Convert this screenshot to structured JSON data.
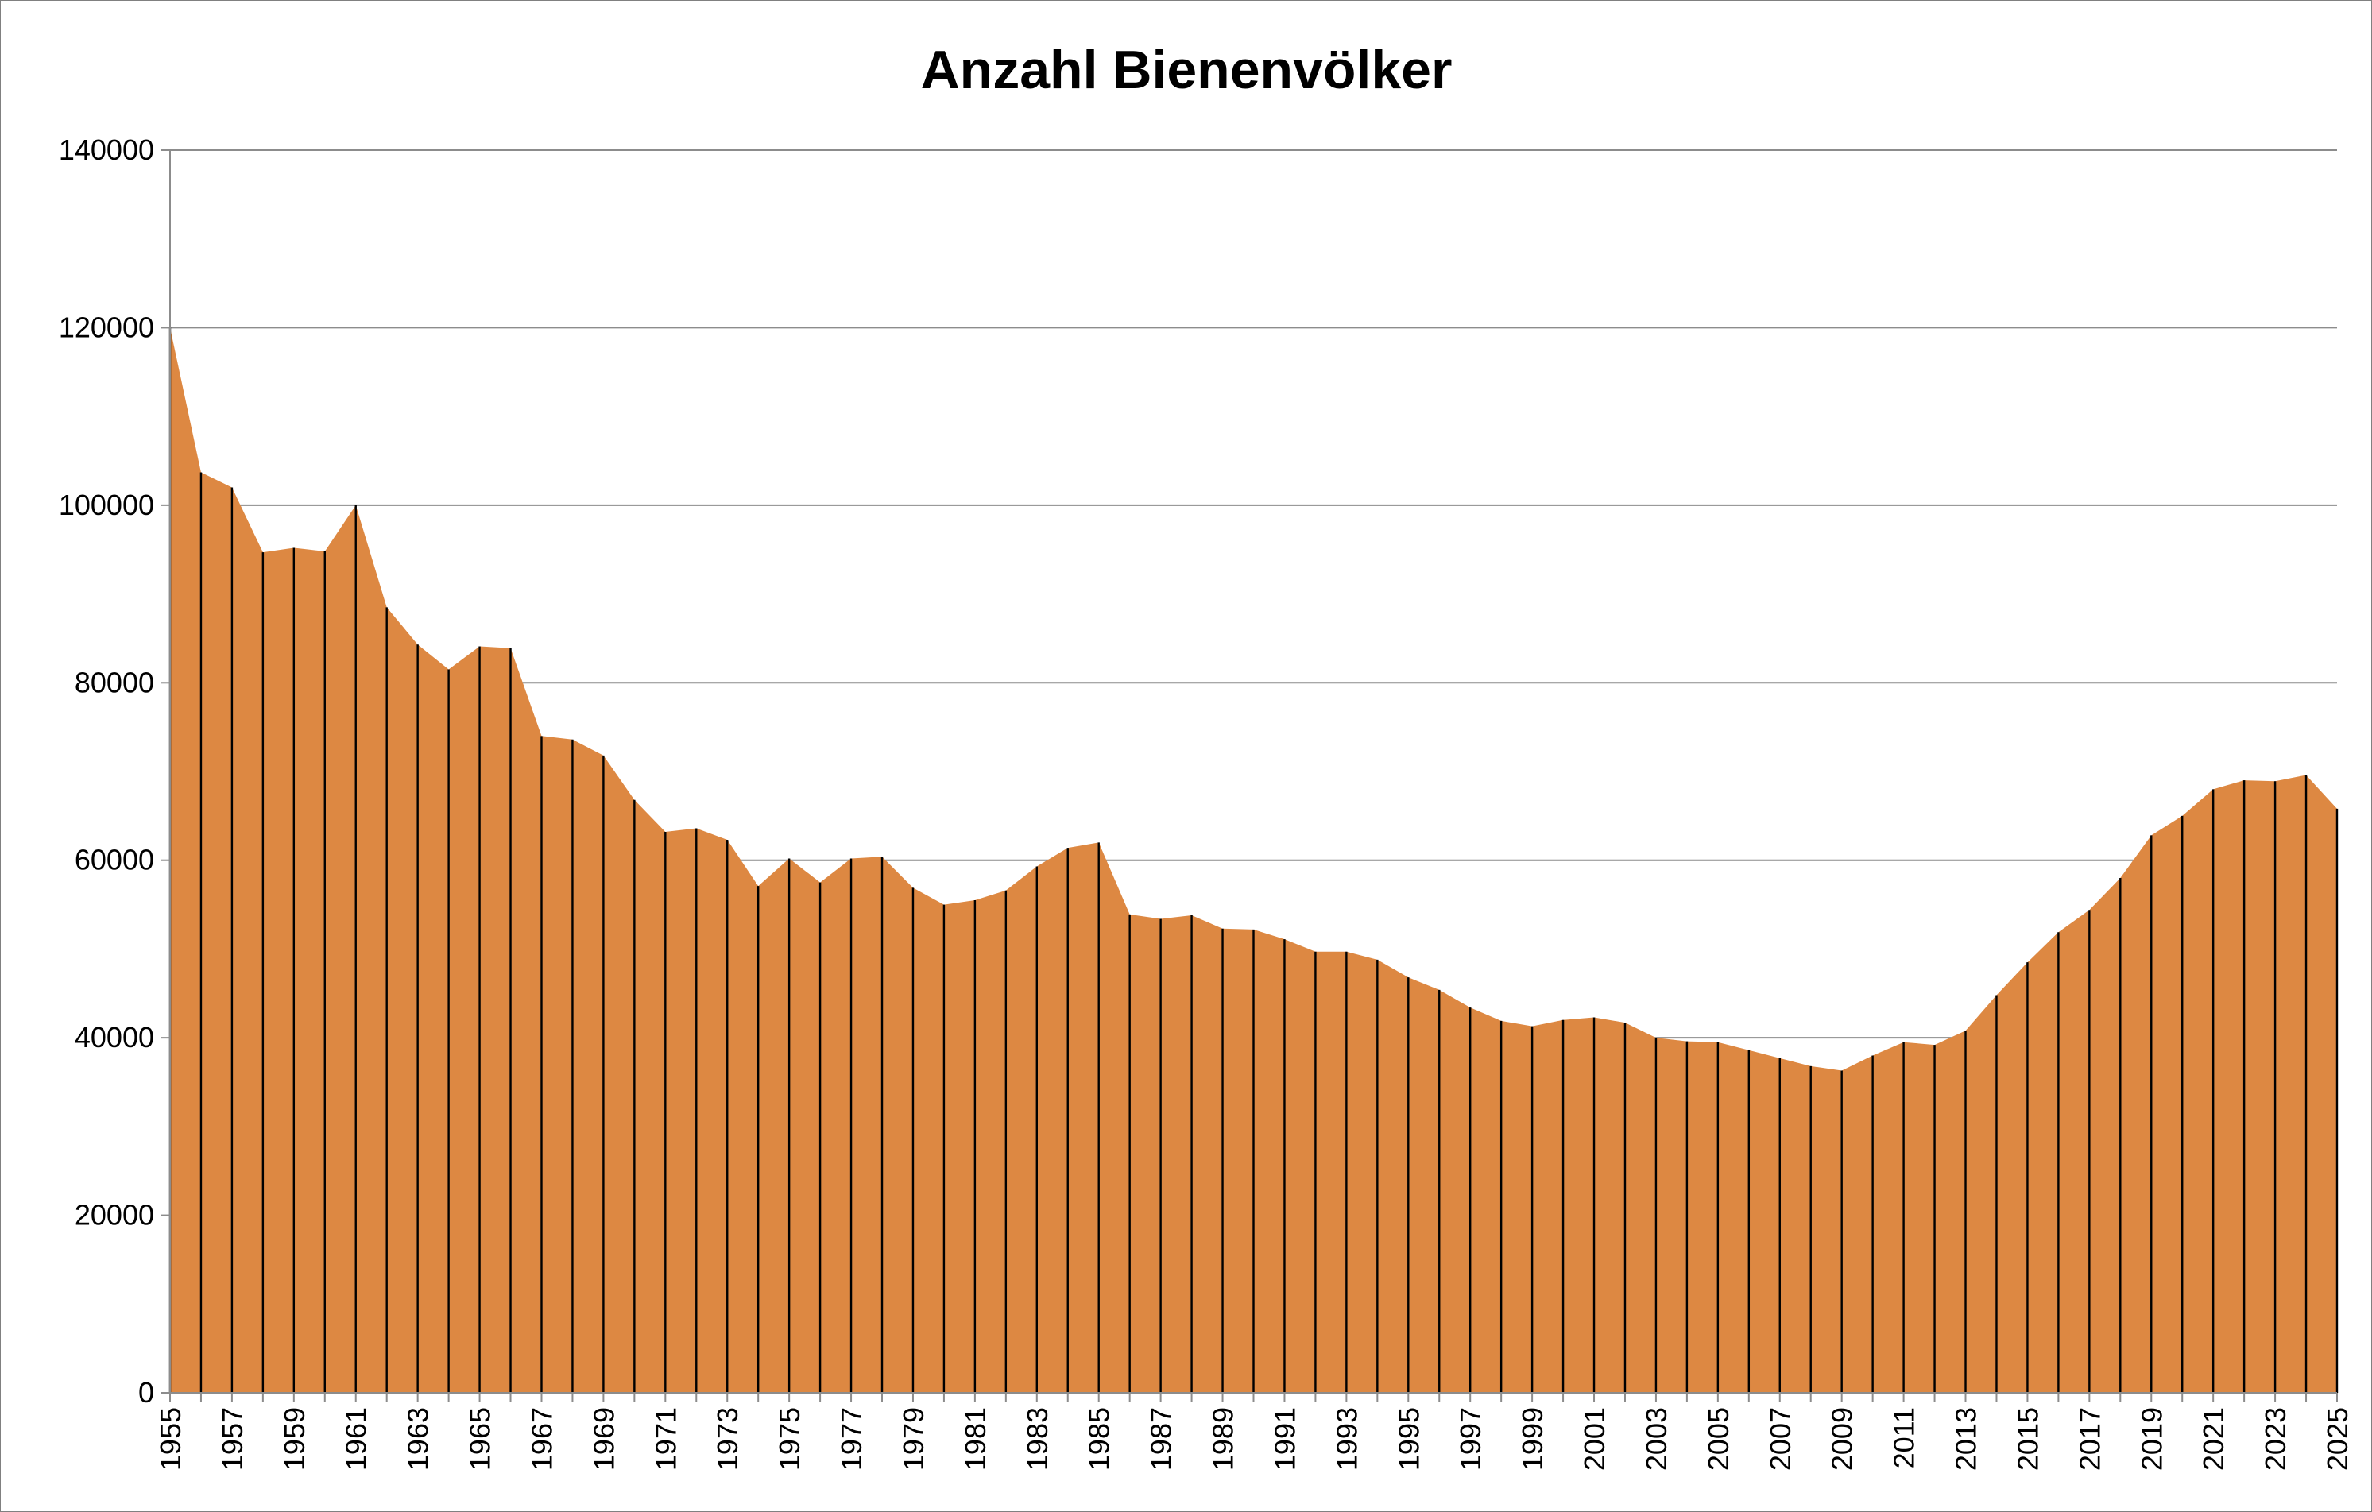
{
  "chart_data": {
    "type": "area",
    "title": "Anzahl Bienenvölker",
    "xlabel": "",
    "ylabel": "",
    "ylim": [
      0,
      140000
    ],
    "yticks": [
      0,
      20000,
      40000,
      60000,
      80000,
      100000,
      120000,
      140000
    ],
    "xticks": [
      1955,
      1957,
      1959,
      1961,
      1963,
      1965,
      1967,
      1969,
      1971,
      1973,
      1975,
      1977,
      1979,
      1981,
      1983,
      1985,
      1987,
      1989,
      1991,
      1993,
      1995,
      1997,
      1999,
      2001,
      2003,
      2005,
      2007,
      2009,
      2011,
      2013,
      2015,
      2017,
      2019,
      2021,
      2023,
      2025
    ],
    "grid": true,
    "legend": "none",
    "color": "#DD8842",
    "drop_line_color": "#000000",
    "x": [
      1955,
      1956,
      1957,
      1958,
      1959,
      1960,
      1961,
      1962,
      1963,
      1964,
      1965,
      1966,
      1967,
      1968,
      1969,
      1970,
      1971,
      1972,
      1973,
      1974,
      1975,
      1976,
      1977,
      1978,
      1979,
      1980,
      1981,
      1982,
      1983,
      1984,
      1985,
      1986,
      1987,
      1988,
      1989,
      1990,
      1991,
      1992,
      1993,
      1994,
      1995,
      1996,
      1997,
      1998,
      1999,
      2000,
      2001,
      2002,
      2003,
      2004,
      2005,
      2006,
      2007,
      2008,
      2009,
      2010,
      2011,
      2012,
      2013,
      2014,
      2015,
      2016,
      2017,
      2018,
      2019,
      2020,
      2021,
      2022,
      2023,
      2024,
      2025
    ],
    "values": [
      120000,
      103700,
      102000,
      94700,
      95200,
      94800,
      100000,
      88500,
      84300,
      81500,
      84100,
      83900,
      74000,
      73600,
      71800,
      66800,
      63200,
      63600,
      62300,
      57100,
      60200,
      57500,
      60200,
      60400,
      56900,
      55000,
      55500,
      56600,
      59300,
      61400,
      62000,
      53900,
      53400,
      53800,
      52300,
      52200,
      51100,
      49700,
      49700,
      48800,
      46800,
      45400,
      43400,
      41900,
      41300,
      42000,
      42300,
      41700,
      40000,
      39600,
      39500,
      38600,
      37700,
      36800,
      36300,
      38000,
      39500,
      39200,
      40800,
      44800,
      48500,
      51900,
      54400,
      58000,
      62800,
      65000,
      68000,
      69000,
      68900,
      69600,
      65800
    ]
  }
}
